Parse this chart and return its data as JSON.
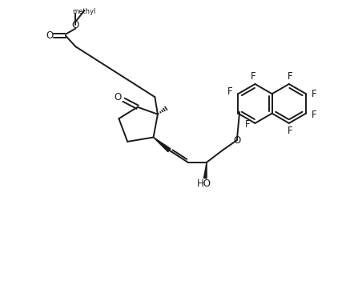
{
  "background_color": "#ffffff",
  "line_color": "#1a1a1a",
  "line_width": 1.4,
  "font_size": 8.5,
  "figsize": [
    4.37,
    3.61
  ],
  "dpi": 100,
  "xlim": [
    0,
    10
  ],
  "ylim": [
    0,
    10
  ]
}
